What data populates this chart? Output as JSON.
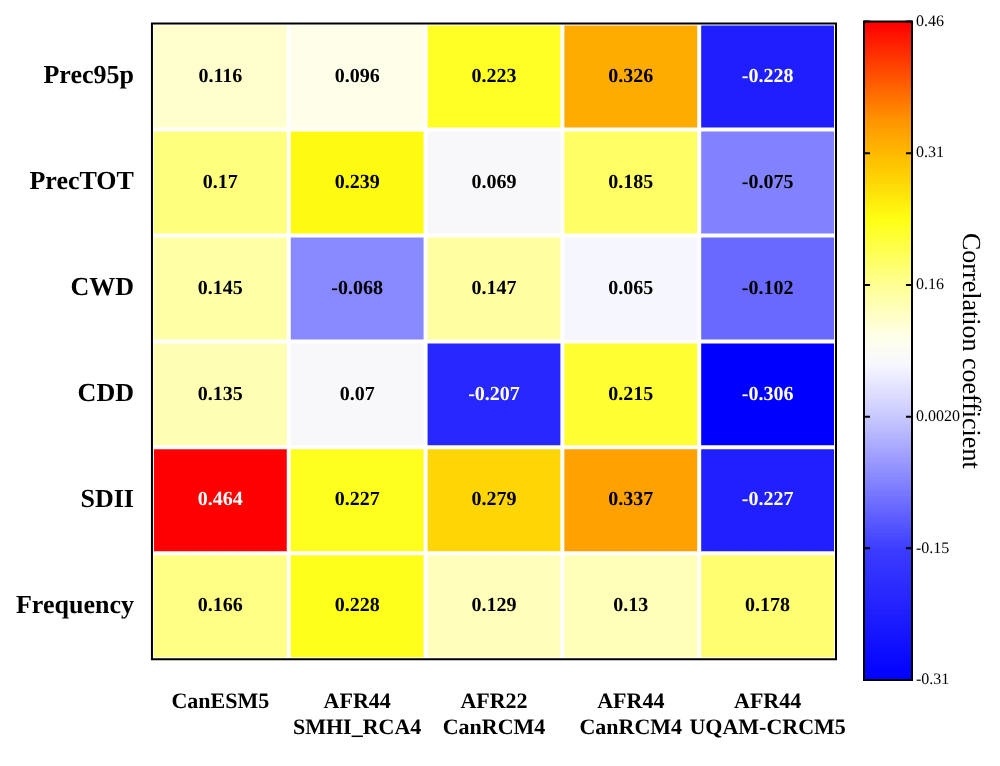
{
  "chart_data": {
    "type": "heatmap",
    "clabel": "Correlation coefficient",
    "categories": [
      "CanESM5",
      "AFR44\nSMHI_RCA4",
      "AFR22\nCanRCM4",
      "AFR44\nCanRCM4",
      "AFR44\nUQAM-CRCM5"
    ],
    "y_categories": [
      "Prec95p",
      "PrecTOT",
      "CWD",
      "CDD",
      "SDII",
      "Frequency"
    ],
    "cells": [
      [
        0.116,
        0.096,
        0.223,
        0.326,
        -0.228
      ],
      [
        0.17,
        0.239,
        0.069,
        0.185,
        -0.075
      ],
      [
        0.145,
        -0.068,
        0.147,
        0.065,
        -0.102
      ],
      [
        0.135,
        0.07,
        -0.207,
        0.215,
        -0.306
      ],
      [
        0.464,
        0.227,
        0.279,
        0.337,
        -0.227
      ],
      [
        0.166,
        0.228,
        0.129,
        0.13,
        0.178
      ]
    ],
    "clim": [
      -0.306,
      0.464
    ],
    "cticks": [
      {
        "value": -0.306,
        "label": "-0.31"
      },
      {
        "value": -0.152,
        "label": "-0.15"
      },
      {
        "value": 0.002,
        "label": "0.0020"
      },
      {
        "value": 0.156,
        "label": "0.16"
      },
      {
        "value": 0.31,
        "label": "0.31"
      },
      {
        "value": 0.464,
        "label": "0.46"
      }
    ],
    "data_labels": true
  }
}
